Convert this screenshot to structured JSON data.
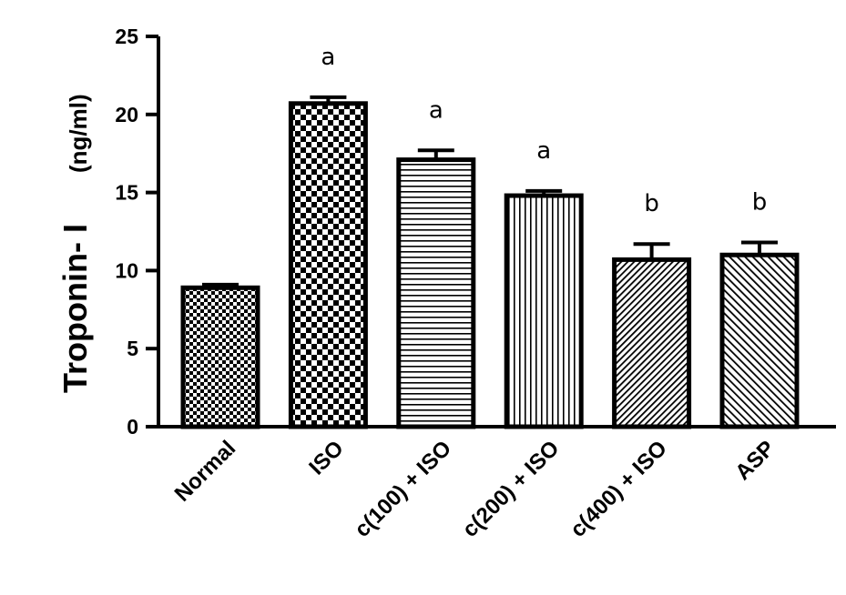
{
  "chart_data": {
    "type": "bar",
    "ylabel_main": "Troponin- I",
    "ylabel_unit": "(ng/ml)",
    "ylim": [
      0,
      25
    ],
    "yticks": [
      0,
      5,
      10,
      15,
      20,
      25
    ],
    "categories": [
      "Normal",
      "ISO",
      "c(100) + ISO",
      "c(200) + ISO",
      "c(400) + ISO",
      "ASP"
    ],
    "values": [
      8.9,
      20.7,
      17.1,
      14.8,
      10.7,
      11.0
    ],
    "errors": [
      0.2,
      0.4,
      0.6,
      0.3,
      1.0,
      0.8
    ],
    "significance": [
      "",
      "a",
      "a",
      "a",
      "b",
      "b"
    ],
    "patterns": [
      "checker-fine",
      "checker",
      "horizontal-lines",
      "vertical-lines",
      "diagonal-dense",
      "diagonal"
    ],
    "grid": false,
    "legend": "none"
  }
}
